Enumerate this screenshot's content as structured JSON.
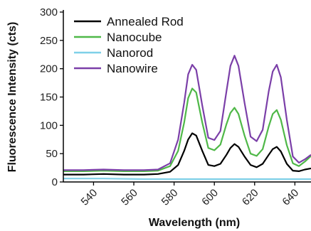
{
  "chart_data": {
    "type": "line",
    "title": "",
    "xlabel": "Wavelength (nm)",
    "ylabel": "Fluorescence Intensity (cts)",
    "xlim": [
      525,
      648
    ],
    "ylim": [
      0,
      300
    ],
    "xticks": [
      540,
      560,
      580,
      600,
      620,
      640
    ],
    "yticks": [
      0,
      50,
      100,
      150,
      200,
      250,
      300
    ],
    "grid": false,
    "legend_position": "top-left",
    "series": [
      {
        "name": "Annealed Rod",
        "color": "#000000",
        "points": [
          [
            525,
            13
          ],
          [
            535,
            13
          ],
          [
            545,
            14
          ],
          [
            555,
            13
          ],
          [
            565,
            13
          ],
          [
            572,
            14
          ],
          [
            578,
            18
          ],
          [
            582,
            30
          ],
          [
            585,
            55
          ],
          [
            587,
            75
          ],
          [
            589,
            86
          ],
          [
            591,
            82
          ],
          [
            594,
            55
          ],
          [
            597,
            30
          ],
          [
            600,
            28
          ],
          [
            603,
            32
          ],
          [
            606,
            48
          ],
          [
            608,
            60
          ],
          [
            610,
            67
          ],
          [
            612,
            62
          ],
          [
            615,
            45
          ],
          [
            618,
            30
          ],
          [
            621,
            26
          ],
          [
            624,
            32
          ],
          [
            627,
            48
          ],
          [
            629,
            58
          ],
          [
            631,
            62
          ],
          [
            633,
            54
          ],
          [
            636,
            32
          ],
          [
            639,
            20
          ],
          [
            642,
            19
          ],
          [
            645,
            22
          ],
          [
            648,
            24
          ]
        ]
      },
      {
        "name": "Nanocube",
        "color": "#4fb848",
        "points": [
          [
            525,
            19
          ],
          [
            535,
            19
          ],
          [
            545,
            20
          ],
          [
            555,
            19
          ],
          [
            565,
            19
          ],
          [
            572,
            20
          ],
          [
            578,
            28
          ],
          [
            582,
            55
          ],
          [
            585,
            105
          ],
          [
            587,
            148
          ],
          [
            589,
            165
          ],
          [
            591,
            158
          ],
          [
            594,
            105
          ],
          [
            597,
            60
          ],
          [
            600,
            56
          ],
          [
            603,
            66
          ],
          [
            606,
            102
          ],
          [
            608,
            122
          ],
          [
            610,
            131
          ],
          [
            612,
            120
          ],
          [
            615,
            82
          ],
          [
            618,
            50
          ],
          [
            621,
            46
          ],
          [
            624,
            58
          ],
          [
            627,
            98
          ],
          [
            629,
            120
          ],
          [
            631,
            127
          ],
          [
            633,
            110
          ],
          [
            636,
            65
          ],
          [
            639,
            33
          ],
          [
            642,
            28
          ],
          [
            645,
            36
          ],
          [
            648,
            46
          ]
        ]
      },
      {
        "name": "Nanorod",
        "color": "#7fd0e8",
        "points": [
          [
            525,
            6
          ],
          [
            545,
            6
          ],
          [
            565,
            5
          ],
          [
            585,
            5
          ],
          [
            605,
            5
          ],
          [
            625,
            5
          ],
          [
            648,
            5
          ]
        ]
      },
      {
        "name": "Nanowire",
        "color": "#7b3fa8",
        "points": [
          [
            525,
            21
          ],
          [
            535,
            21
          ],
          [
            545,
            22
          ],
          [
            555,
            21
          ],
          [
            565,
            21
          ],
          [
            572,
            22
          ],
          [
            578,
            33
          ],
          [
            582,
            75
          ],
          [
            585,
            140
          ],
          [
            587,
            190
          ],
          [
            589,
            207
          ],
          [
            591,
            198
          ],
          [
            594,
            135
          ],
          [
            597,
            78
          ],
          [
            600,
            74
          ],
          [
            603,
            90
          ],
          [
            606,
            160
          ],
          [
            608,
            205
          ],
          [
            610,
            223
          ],
          [
            612,
            205
          ],
          [
            615,
            140
          ],
          [
            618,
            80
          ],
          [
            621,
            72
          ],
          [
            624,
            92
          ],
          [
            627,
            160
          ],
          [
            629,
            195
          ],
          [
            631,
            207
          ],
          [
            633,
            185
          ],
          [
            636,
            110
          ],
          [
            639,
            45
          ],
          [
            642,
            34
          ],
          [
            645,
            40
          ],
          [
            648,
            48
          ]
        ]
      }
    ]
  }
}
